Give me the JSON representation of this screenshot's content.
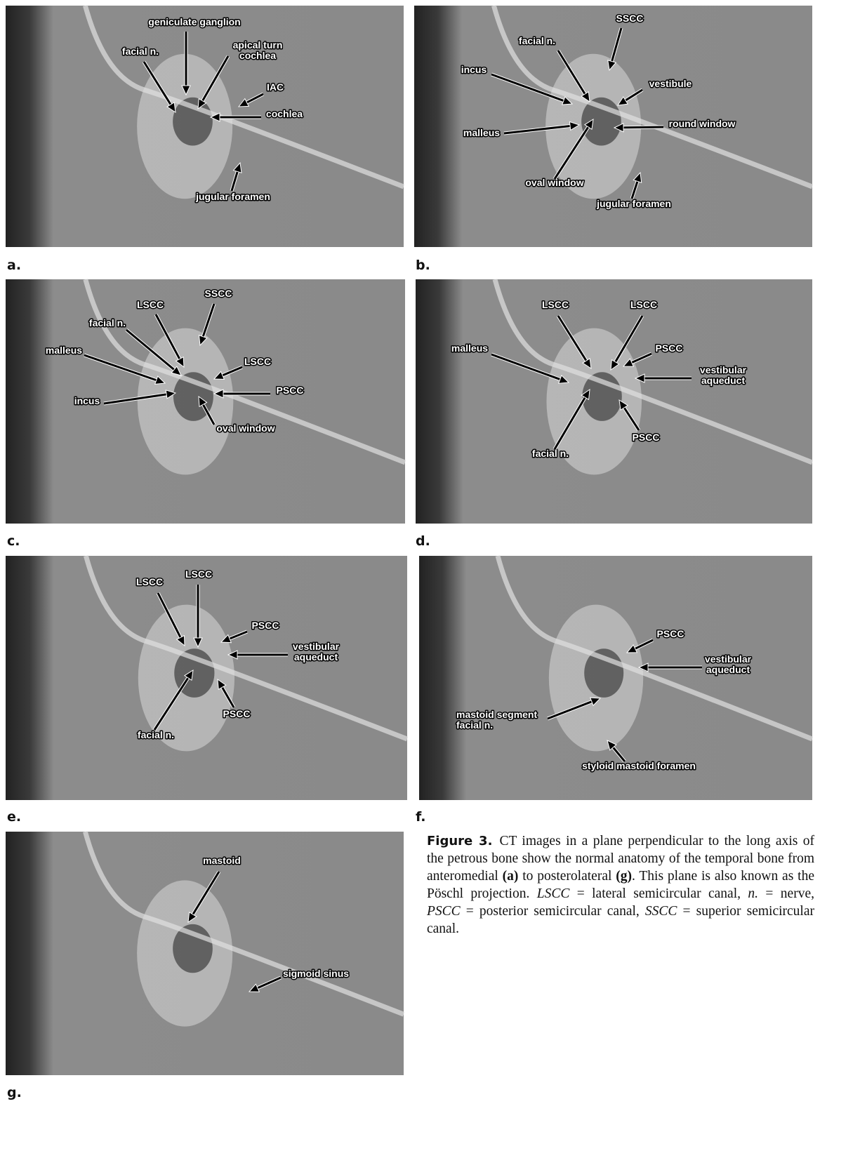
{
  "panels": [
    {
      "letter": "a.",
      "labels": [
        "geniculate ganglion",
        "facial n.",
        [
          "apical turn",
          "cochlea"
        ],
        "IAC",
        "cochlea",
        "jugular foramen"
      ]
    },
    {
      "letter": "b.",
      "labels": [
        "SSCC",
        "facial n.",
        "incus",
        "vestibule",
        "round window",
        "malleus",
        "oval window",
        "jugular foramen"
      ]
    },
    {
      "letter": "c.",
      "labels": [
        "SSCC",
        "LSCC",
        "facial n.",
        "malleus",
        "LSCC",
        "PSCC",
        "incus",
        "oval window"
      ]
    },
    {
      "letter": "d.",
      "labels": [
        "LSCC",
        "LSCC",
        "PSCC",
        "malleus",
        [
          "vestibular",
          "aqueduct"
        ],
        "PSCC",
        "facial n."
      ]
    },
    {
      "letter": "e.",
      "labels": [
        "LSCC",
        "LSCC",
        "PSCC",
        [
          "vestibular",
          "aqueduct"
        ],
        "PSCC",
        "facial n."
      ]
    },
    {
      "letter": "f.",
      "labels": [
        "PSCC",
        [
          "vestibular",
          "aqueduct"
        ],
        [
          "mastoid segment",
          "facial n."
        ],
        "styloid mastoid foramen"
      ]
    },
    {
      "letter": "g.",
      "labels": [
        "mastoid",
        "sigmoid sinus"
      ]
    }
  ],
  "caption": [
    "Figure 3.",
    "CT images in a plane perpendicular to the long axis of the petrous bone show the normal anatomy of the temporal bone from anteromedial ",
    "(a)",
    " to posterolateral ",
    "(g)",
    ". This plane is also known as the Pöschl projection. ",
    "LSCC",
    " = lateral semicircular canal, ",
    "n.",
    " = nerve, ",
    "PSCC",
    " = posterior semicircular canal, ",
    "SSCC",
    " = superior semicircular canal."
  ]
}
